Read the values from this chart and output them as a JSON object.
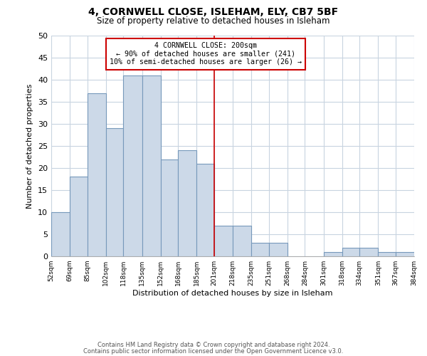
{
  "title": "4, CORNWELL CLOSE, ISLEHAM, ELY, CB7 5BF",
  "subtitle": "Size of property relative to detached houses in Isleham",
  "xlabel": "Distribution of detached houses by size in Isleham",
  "ylabel": "Number of detached properties",
  "bar_color": "#ccd9e8",
  "bar_edge_color": "#7799bb",
  "bins": [
    52,
    69,
    85,
    102,
    118,
    135,
    152,
    168,
    185,
    201,
    218,
    235,
    251,
    268,
    284,
    301,
    318,
    334,
    351,
    367,
    384
  ],
  "counts": [
    10,
    18,
    37,
    29,
    41,
    41,
    22,
    24,
    21,
    7,
    7,
    3,
    3,
    0,
    0,
    1,
    2,
    2,
    1,
    1
  ],
  "tick_labels": [
    "52sqm",
    "69sqm",
    "85sqm",
    "102sqm",
    "118sqm",
    "135sqm",
    "152sqm",
    "168sqm",
    "185sqm",
    "201sqm",
    "218sqm",
    "235sqm",
    "251sqm",
    "268sqm",
    "284sqm",
    "301sqm",
    "318sqm",
    "334sqm",
    "351sqm",
    "367sqm",
    "384sqm"
  ],
  "vline_x": 201,
  "vline_color": "#cc0000",
  "annotation_title": "4 CORNWELL CLOSE: 200sqm",
  "annotation_line1": "← 90% of detached houses are smaller (241)",
  "annotation_line2": "10% of semi-detached houses are larger (26) →",
  "annotation_box_color": "#ffffff",
  "annotation_box_edge": "#cc0000",
  "ylim": [
    0,
    50
  ],
  "yticks": [
    0,
    5,
    10,
    15,
    20,
    25,
    30,
    35,
    40,
    45,
    50
  ],
  "footer1": "Contains HM Land Registry data © Crown copyright and database right 2024.",
  "footer2": "Contains public sector information licensed under the Open Government Licence v3.0.",
  "background_color": "#ffffff",
  "grid_color": "#c8d4e0"
}
